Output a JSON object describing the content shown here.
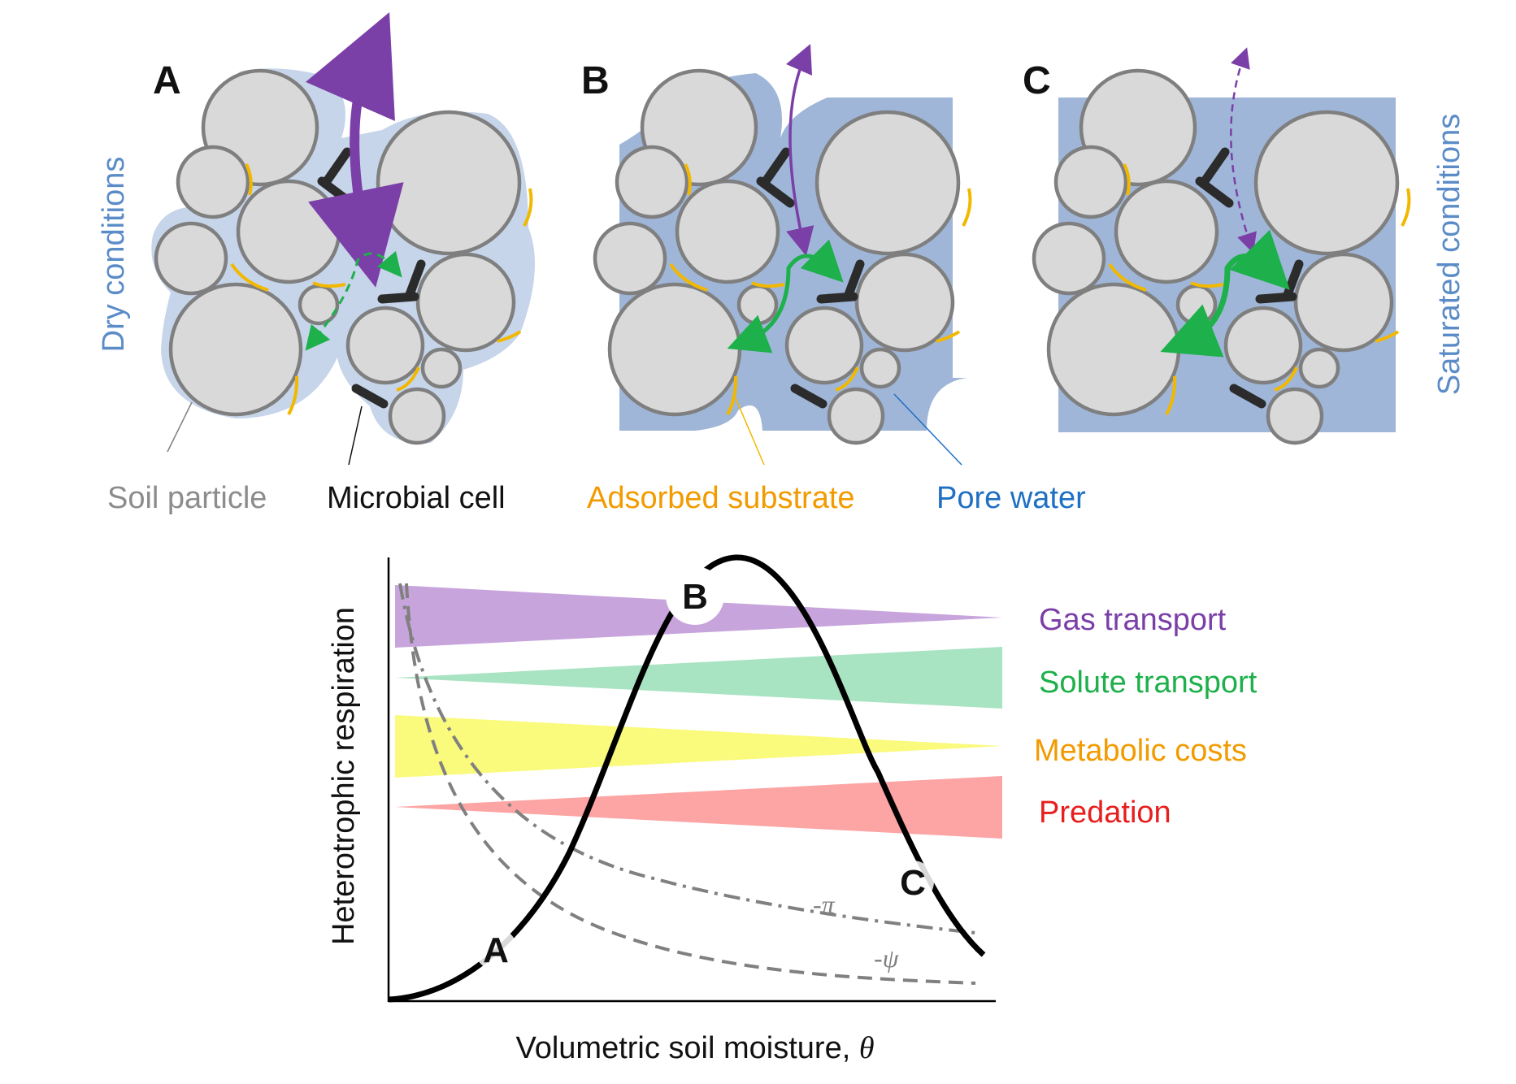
{
  "colors": {
    "particle_fill": "#d9d9d9",
    "particle_stroke": "#7f7f7f",
    "water": "#9fb6d8",
    "water_light": "#b9cce6",
    "substrate": "#f2b800",
    "microbe": "#2b2b2b",
    "gas": "#7b3fa8",
    "solute": "#1db04b",
    "dry_label": "#5b8cc8",
    "soil_label": "#8c8c8c",
    "microbe_label": "#111111",
    "substrate_label": "#f29b00",
    "pore_label": "#1f6fc4",
    "gas_band": "#c7a5dc",
    "solute_band": "#a8e3c2",
    "metabolic_band": "#fafa7c",
    "predation_band": "#fda4a4",
    "gas_text": "#7b3fa8",
    "solute_text": "#1db04b",
    "metabolic_text": "#f29b00",
    "predation_text": "#e81e1e"
  },
  "panels": [
    {
      "id": "A",
      "label": "A"
    },
    {
      "id": "B",
      "label": "B"
    },
    {
      "id": "C",
      "label": "C"
    }
  ],
  "side_labels": {
    "left": "Dry conditions",
    "right": "Saturated conditions"
  },
  "legend": {
    "soil_particle": "Soil particle",
    "microbial_cell": "Microbial cell",
    "adsorbed_substrate": "Adsorbed substrate",
    "pore_water": "Pore water"
  },
  "graph": {
    "ylabel": "Heterotrophic respiration",
    "xlabel_text": "Volumetric soil moisture, ",
    "xlabel_symbol": "θ",
    "points": [
      "A",
      "B",
      "C"
    ],
    "curve_labels": {
      "osmotic": "-π",
      "matric": "-ψ"
    },
    "bands": [
      {
        "name": "Gas transport"
      },
      {
        "name": "Solute transport"
      },
      {
        "name": "Metabolic costs"
      },
      {
        "name": "Predation"
      }
    ]
  }
}
